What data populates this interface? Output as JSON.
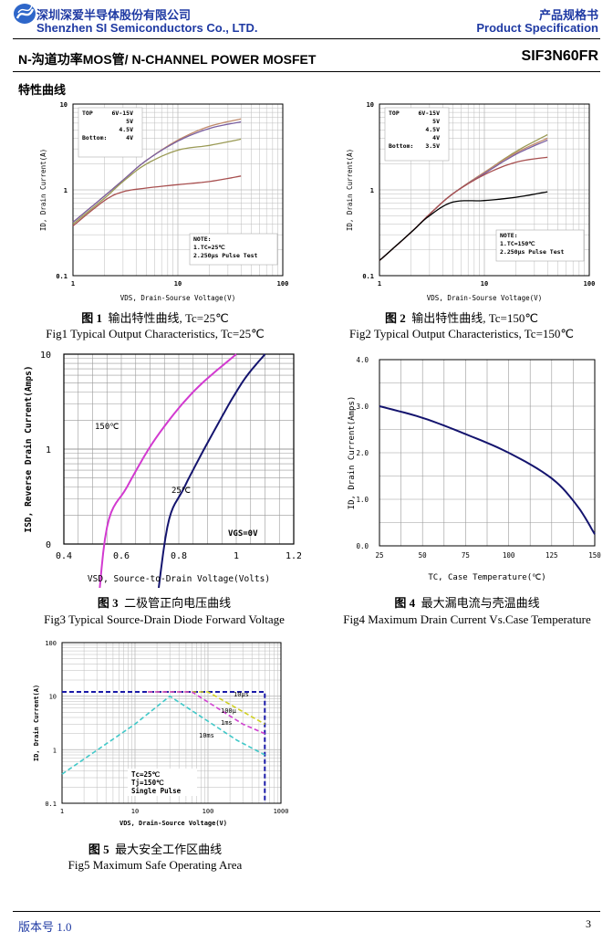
{
  "header": {
    "company_cn": "深圳深爱半导体股份有限公司",
    "company_en": "Shenzhen SI Semiconductors Co., LTD.",
    "doc_type_cn": "产品规格书",
    "doc_type_en": "Product Specification",
    "product_line": "N-沟道功率MOS管/ N-CHANNEL POWER MOSFET",
    "part_number": "SIF3N60FR"
  },
  "section_title": "特性曲线",
  "figures": [
    {
      "cap_cn_num": "图 1",
      "cap_cn": "输出特性曲线, Tc=25℃",
      "cap_en": "Fig1 Typical Output Characteristics, Tc=25℃",
      "xlabel": "VDS, Drain-Sourse Voltage(V)",
      "ylabel": "ID, Drain Current(A)",
      "x_ticks": [
        "1",
        "10",
        "100"
      ],
      "y_ticks": [
        "0.1",
        "1",
        "10"
      ],
      "legend_lines": [
        [
          "TOP",
          "6V-15V"
        ],
        [
          "",
          "5V"
        ],
        [
          "",
          "4.5V"
        ],
        [
          "Bottom:",
          "4V"
        ]
      ],
      "note_lines": [
        "NOTE:",
        "1.TC=25℃",
        "2.250μs Pulse Test"
      ]
    },
    {
      "cap_cn_num": "图 2",
      "cap_cn": "输出特性曲线, Tc=150℃",
      "cap_en": "Fig2 Typical Output Characteristics, Tc=150℃",
      "xlabel": "VDS, Drain-Sourse Voltage(V)",
      "ylabel": "ID, Drain Current(A)",
      "x_ticks": [
        "1",
        "10",
        "100"
      ],
      "y_ticks": [
        "0.1",
        "1",
        "10"
      ],
      "legend_lines": [
        [
          "TOP",
          "6V-15V"
        ],
        [
          "",
          "5V"
        ],
        [
          "",
          "4.5V"
        ],
        [
          "",
          "4V"
        ],
        [
          "Bottom:",
          "3.5V"
        ]
      ],
      "note_lines": [
        "NOTE:",
        "1.TC=150℃",
        "2.250μs Pulse Test"
      ]
    },
    {
      "cap_cn_num": "图 3",
      "cap_cn": "二极管正向电压曲线",
      "cap_en": "Fig3 Typical Source-Drain Diode Forward Voltage",
      "xlabel": "VSD, Source-to-Drain Voltage(Volts)",
      "ylabel": "ISD, Reverse Drain Current(Amps)",
      "x_ticks": [
        "0.4",
        "0.6",
        "0.8",
        "1",
        "1.2"
      ],
      "y_ticks": [
        "0",
        "1",
        "10"
      ],
      "labels": [
        "150℃",
        "25℃",
        "VGS=0V"
      ]
    },
    {
      "cap_cn_num": "图 4",
      "cap_cn": "最大漏电流与壳温曲线",
      "cap_en": "Fig4 Maximum Drain Current Vs.Case Temperature",
      "xlabel": "TC, Case Temperature(℃)",
      "ylabel": "ID, Drain Current(Amps)",
      "x_ticks": [
        "25",
        "50",
        "75",
        "100",
        "125",
        "150"
      ],
      "y_ticks": [
        "0.0",
        "1.0",
        "2.0",
        "3.0",
        "4.0"
      ]
    },
    {
      "cap_cn_num": "图 5",
      "cap_cn": "最大安全工作区曲线",
      "cap_en": "Fig5   Maximum Safe Operating Area",
      "xlabel": "VDS, Drain-Source Voltage(V)",
      "ylabel": "ID, Drain Current(A)",
      "x_ticks": [
        "1",
        "10",
        "100",
        "1000"
      ],
      "y_ticks": [
        "0.1",
        "1",
        "10",
        "100"
      ],
      "pulse_labels": [
        "10μs",
        "100μ",
        "1ms",
        "10ms"
      ],
      "cond_lines": [
        "Tc=25℃",
        "Tj=150℃",
        "Single Pulse"
      ]
    }
  ],
  "footer": {
    "version": "版本号 1.0",
    "page": "3"
  },
  "chart_data": [
    {
      "type": "line",
      "xlabel": "VDS, Drain-Sourse Voltage(V)",
      "ylabel": "ID, Drain Current(A)",
      "x_scale": "log",
      "y_scale": "log",
      "xlim": [
        1,
        100
      ],
      "ylim": [
        0.1,
        10
      ],
      "series": [
        {
          "name": "6V-15V",
          "x": [
            1,
            2,
            3,
            5,
            10,
            20,
            40
          ],
          "y": [
            0.42,
            0.85,
            1.3,
            2.2,
            3.8,
            5.5,
            6.7
          ]
        },
        {
          "name": "5V",
          "x": [
            1,
            2,
            3,
            5,
            10,
            20,
            40
          ],
          "y": [
            0.42,
            0.85,
            1.3,
            2.2,
            3.7,
            5.2,
            6.2
          ]
        },
        {
          "name": "4.5V",
          "x": [
            1,
            2,
            3,
            5,
            10,
            20,
            40
          ],
          "y": [
            0.4,
            0.8,
            1.25,
            2.0,
            2.9,
            3.3,
            3.9
          ]
        },
        {
          "name": "4V",
          "x": [
            1,
            2,
            3,
            5,
            10,
            20,
            40
          ],
          "y": [
            0.38,
            0.75,
            0.95,
            1.05,
            1.15,
            1.25,
            1.45
          ]
        }
      ]
    },
    {
      "type": "line",
      "xlabel": "VDS, Drain-Sourse Voltage(V)",
      "ylabel": "ID, Drain Current(A)",
      "x_scale": "log",
      "y_scale": "log",
      "xlim": [
        1,
        100
      ],
      "ylim": [
        0.1,
        10
      ],
      "series": [
        {
          "name": "6V-15V",
          "x": [
            1,
            2,
            3,
            5,
            10,
            20,
            40
          ],
          "y": [
            0.15,
            0.32,
            0.52,
            0.9,
            1.6,
            2.8,
            4.4
          ]
        },
        {
          "name": "5V",
          "x": [
            1,
            2,
            3,
            5,
            10,
            20,
            40
          ],
          "y": [
            0.15,
            0.32,
            0.52,
            0.9,
            1.6,
            2.7,
            4.0
          ]
        },
        {
          "name": "4.5V",
          "x": [
            1,
            2,
            3,
            5,
            10,
            20,
            40
          ],
          "y": [
            0.15,
            0.32,
            0.52,
            0.9,
            1.55,
            2.6,
            3.8
          ]
        },
        {
          "name": "4V",
          "x": [
            1,
            2,
            3,
            5,
            10,
            20,
            40
          ],
          "y": [
            0.15,
            0.32,
            0.52,
            0.9,
            1.5,
            2.1,
            2.4
          ]
        },
        {
          "name": "3.5V",
          "x": [
            1,
            2,
            3,
            5,
            10,
            20,
            40
          ],
          "y": [
            0.15,
            0.32,
            0.5,
            0.72,
            0.75,
            0.82,
            0.95
          ]
        }
      ]
    },
    {
      "type": "line",
      "xlabel": "VSD, Source-to-Drain Voltage(Volts)",
      "ylabel": "ISD, Reverse Drain Current(Amps)",
      "xlim": [
        0.4,
        1.2
      ],
      "y_ticks": [
        "0",
        "1",
        "10"
      ],
      "series": [
        {
          "name": "150℃",
          "x": [
            0.51,
            0.55,
            0.62,
            0.72,
            0.85,
            1.0
          ],
          "y": [
            0.01,
            0.15,
            0.4,
            1.3,
            4.0,
            10
          ]
        },
        {
          "name": "25℃",
          "x": [
            0.71,
            0.76,
            0.82,
            0.92,
            1.02,
            1.1
          ],
          "y": [
            0.01,
            0.15,
            0.4,
            1.5,
            5.0,
            10
          ]
        }
      ]
    },
    {
      "type": "line",
      "xlabel": "TC, Case Temperature(℃)",
      "ylabel": "ID, Drain Current(Amps)",
      "xlim": [
        25,
        150
      ],
      "ylim": [
        0,
        4
      ],
      "series": [
        {
          "name": "ID",
          "x": [
            25,
            50,
            75,
            100,
            125,
            140,
            150
          ],
          "y": [
            3.0,
            2.75,
            2.4,
            2.0,
            1.45,
            0.85,
            0.25
          ]
        }
      ]
    },
    {
      "type": "line",
      "xlabel": "VDS, Drain-Source Voltage(V)",
      "ylabel": "ID, Drain Current(A)",
      "x_scale": "log",
      "y_scale": "log",
      "xlim": [
        1,
        1000
      ],
      "ylim": [
        0.1,
        100
      ],
      "series": [
        {
          "name": "10μs",
          "x": [
            1,
            600,
            600
          ],
          "y": [
            12,
            12,
            0.1
          ]
        },
        {
          "name": "100μ",
          "x": [
            15,
            100,
            600
          ],
          "y": [
            12,
            12,
            3
          ]
        },
        {
          "name": "1ms",
          "x": [
            15,
            60,
            300,
            600
          ],
          "y": [
            12,
            12,
            3,
            2
          ]
        },
        {
          "name": "10ms",
          "x": [
            1,
            10,
            30,
            250,
            600
          ],
          "y": [
            0.35,
            3,
            10,
            1.5,
            0.8
          ]
        }
      ]
    }
  ]
}
